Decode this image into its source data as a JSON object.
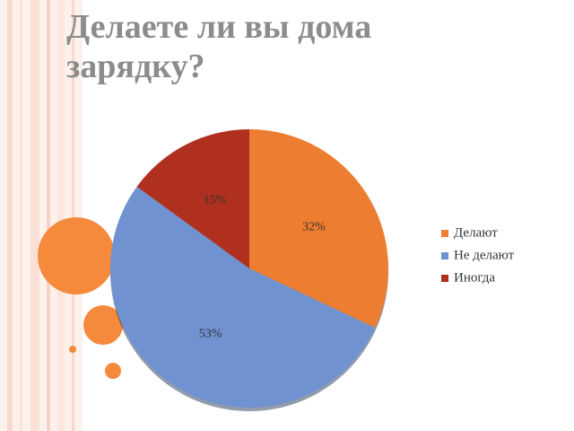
{
  "chart_data": {
    "type": "pie",
    "title": "Делаете ли вы дома зарядку?",
    "categories": [
      "Делают",
      "Не делают",
      "Иногда"
    ],
    "values": [
      32,
      53,
      15
    ],
    "value_labels": [
      "32%",
      "53%",
      "15%"
    ],
    "colors": [
      "#ed7d31",
      "#7092d0",
      "#b0301f"
    ]
  }
}
